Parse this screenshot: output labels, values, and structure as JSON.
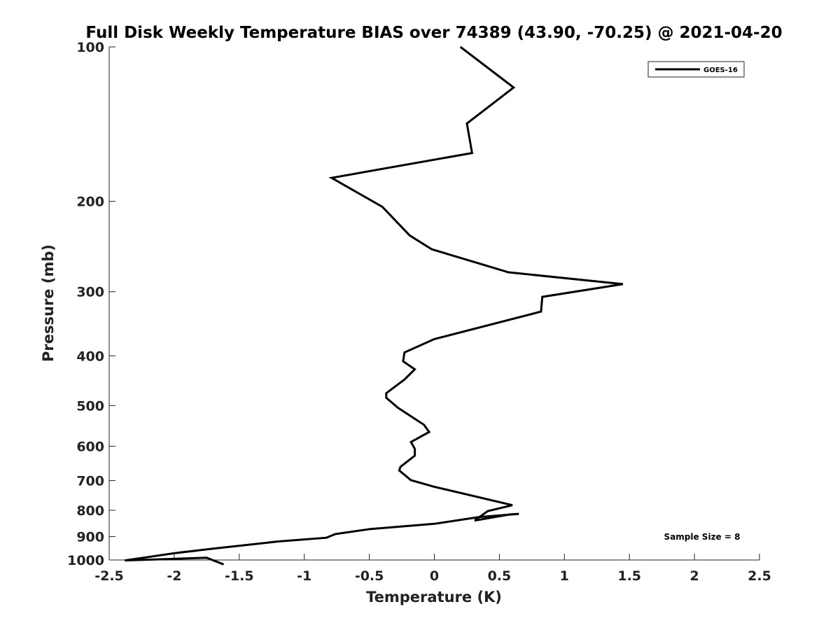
{
  "chart_data": {
    "type": "line",
    "title": "Full Disk Weekly Temperature BIAS over 74389 (43.90, -70.25) @ 2021-04-20",
    "xlabel": "Temperature (K)",
    "ylabel": "Pressure (mb)",
    "xlim": [
      -2.5,
      2.5
    ],
    "ylim": [
      100,
      1000
    ],
    "y_scale": "log",
    "y_reversed": true,
    "x_ticks": [
      "-2.5",
      "-2",
      "-1.5",
      "-1",
      "-0.5",
      "0",
      "0.5",
      "1",
      "1.5",
      "2",
      "2.5"
    ],
    "y_ticks": [
      "100",
      "200",
      "300",
      "400",
      "500",
      "600",
      "700",
      "800",
      "900",
      "1000"
    ],
    "grid": false,
    "legend_position": "top-right",
    "annotation": "Sample Size = 8",
    "series": [
      {
        "name": "GOES-16",
        "color": "#000000",
        "x": [
          0.2,
          0.61,
          0.25,
          0.29,
          -0.79,
          -0.4,
          -0.19,
          -0.02,
          0.57,
          1.45,
          0.83,
          0.82,
          0.0,
          -0.23,
          -0.24,
          -0.15,
          -0.23,
          -0.37,
          -0.37,
          -0.28,
          -0.08,
          -0.04,
          -0.18,
          -0.15,
          -0.15,
          -0.26,
          -0.27,
          -0.18,
          0.0,
          0.6,
          0.41,
          0.31,
          0.58,
          0.65,
          0.34,
          0.0,
          -0.49,
          -0.76,
          -0.83,
          -1.2,
          -1.7,
          -2.0,
          -2.38,
          -1.75,
          -1.62
        ],
        "y": [
          100,
          120,
          141,
          161,
          180,
          205,
          233,
          248,
          275,
          290,
          307,
          328,
          371,
          394,
          410,
          425,
          445,
          473,
          483,
          505,
          545,
          563,
          589,
          607,
          626,
          658,
          669,
          699,
          720,
          782,
          803,
          838,
          815,
          813,
          825,
          850,
          870,
          890,
          905,
          920,
          950,
          970,
          1002,
          990,
          1020
        ]
      }
    ]
  }
}
